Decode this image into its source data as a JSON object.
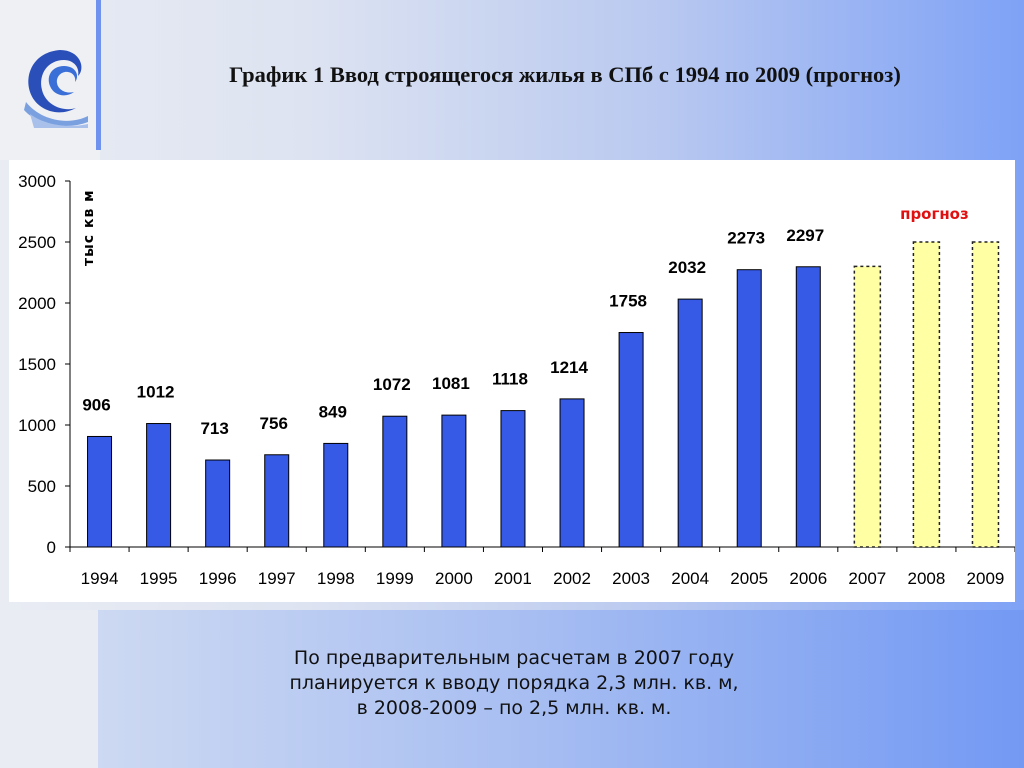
{
  "title": "График 1 Ввод строящегося жилья в СПб с 1994 по 2009 (прогноз)",
  "caption": {
    "line1": "По предварительным расчетам в 2007 году",
    "line2": "планируется к вводу порядка 2,3 млн. кв. м,",
    "line3": "в 2008-2009 – по 2,5 млн. кв. м."
  },
  "colors": {
    "actual_bar": "#3659e6",
    "forecast_bar": "#ffffa3",
    "forecast_label": "#e01010"
  },
  "chart_data": {
    "type": "bar",
    "ylabel": "тыс кв м",
    "ylim": [
      0,
      3000
    ],
    "yticks": [
      0,
      500,
      1000,
      1500,
      2000,
      2500,
      3000
    ],
    "categories": [
      "1994",
      "1995",
      "1996",
      "1997",
      "1998",
      "1999",
      "2000",
      "2001",
      "2002",
      "2003",
      "2004",
      "2005",
      "2006",
      "2007",
      "2008",
      "2009"
    ],
    "values": [
      906,
      1012,
      713,
      756,
      849,
      1072,
      1081,
      1118,
      1214,
      1758,
      2032,
      2273,
      2297,
      2300,
      2500,
      2500
    ],
    "data_labels": [
      "906",
      "1012",
      "713",
      "756",
      "849",
      "1072",
      "1081",
      "1118",
      "1214",
      "1758",
      "2032",
      "2273",
      "2297",
      "",
      "",
      ""
    ],
    "forecast": [
      false,
      false,
      false,
      false,
      false,
      false,
      false,
      false,
      false,
      false,
      false,
      false,
      false,
      true,
      true,
      true
    ],
    "forecast_label": "прогноз",
    "grid": false,
    "legend": "none"
  }
}
